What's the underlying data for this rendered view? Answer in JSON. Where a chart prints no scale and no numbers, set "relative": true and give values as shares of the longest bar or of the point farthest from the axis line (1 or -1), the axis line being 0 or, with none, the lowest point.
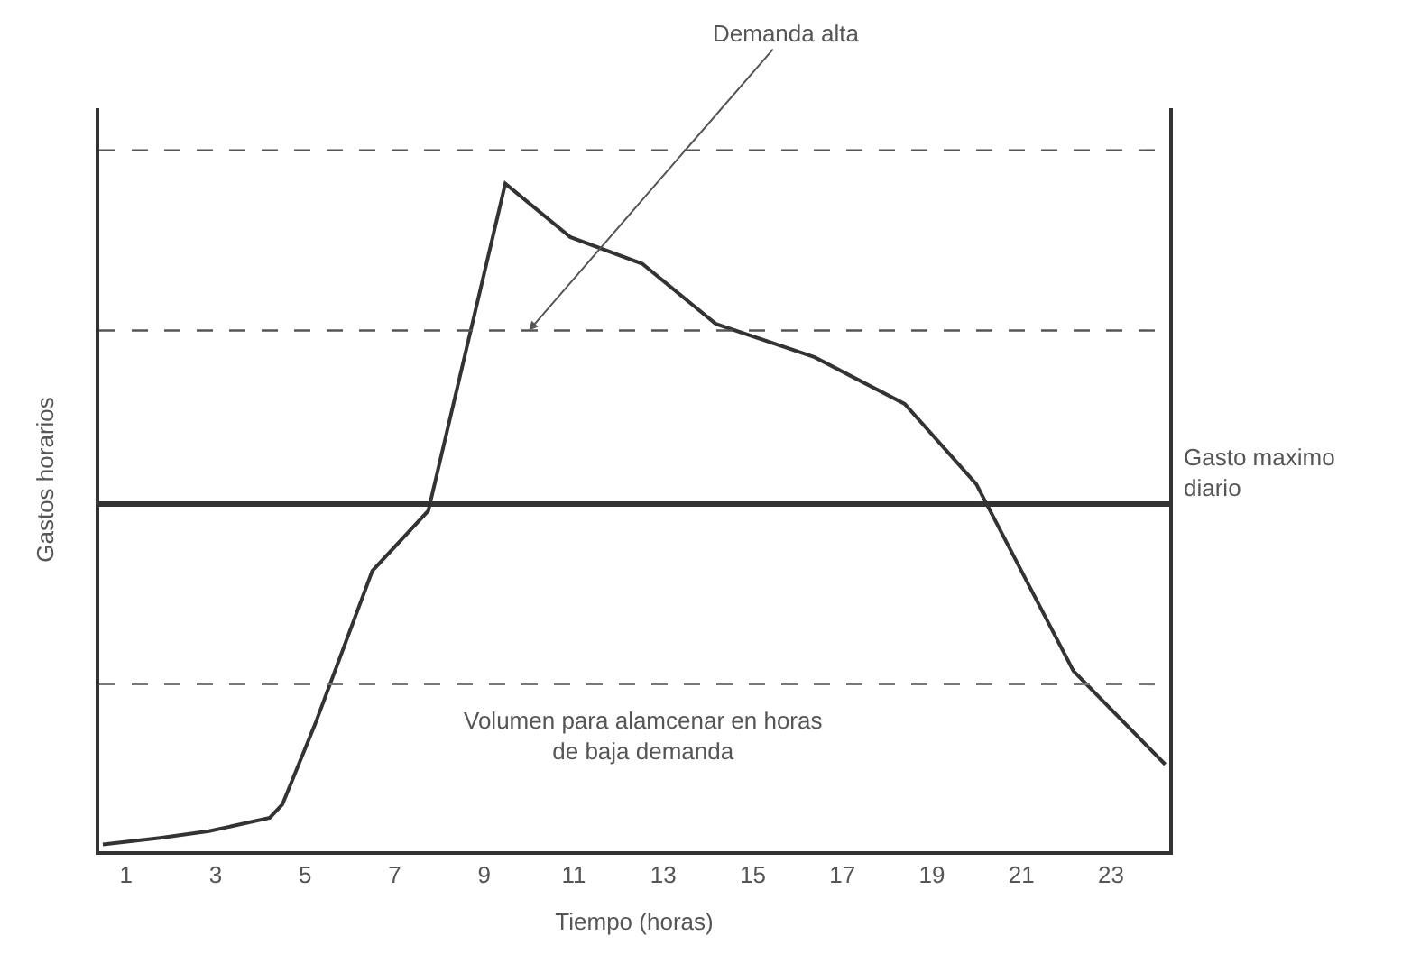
{
  "chart_data": {
    "type": "line",
    "relative": true,
    "xlabel": "Tiempo (horas)",
    "ylabel": "Gastos horarios",
    "x": [
      0.48,
      1.76,
      2.85,
      4.21,
      4.49,
      5.22,
      6.5,
      7.75,
      9.47,
      10.92,
      12.53,
      14.17,
      16.38,
      18.39,
      19.99,
      22.16,
      24.21
    ],
    "series": [
      {
        "color": "#333333",
        "values": [
          0.01,
          0.02,
          0.03,
          0.05,
          0.07,
          0.19,
          0.42,
          0.51,
          1,
          0.92,
          0.88,
          0.79,
          0.74,
          0.67,
          0.55,
          0.27,
          0.13
        ]
      }
    ],
    "xlim": [
      0.4,
      24.3
    ],
    "xticks": [
      1,
      3,
      5,
      7,
      9,
      11,
      13,
      15,
      17,
      19,
      21,
      23
    ],
    "ref_lines": [
      {
        "axis": "y",
        "value": 1.05,
        "color": "#555555",
        "line_style": "dashed"
      },
      {
        "axis": "y",
        "value": 0.78,
        "color": "#555555",
        "line_style": "dashed"
      },
      {
        "axis": "y",
        "value": 0.52,
        "color": "#333333",
        "line_style": "solid",
        "label": "Gasto maximo diario"
      },
      {
        "axis": "y",
        "value": 0.25,
        "color": "#777777",
        "line_style": "dashed"
      }
    ],
    "annotations": [
      {
        "text": "Demanda alta",
        "x": 10.0,
        "y": 0.78
      },
      "Volumen para alamcenar en horas de baja demanda"
    ],
    "marker": "none",
    "line_style": "solid"
  }
}
